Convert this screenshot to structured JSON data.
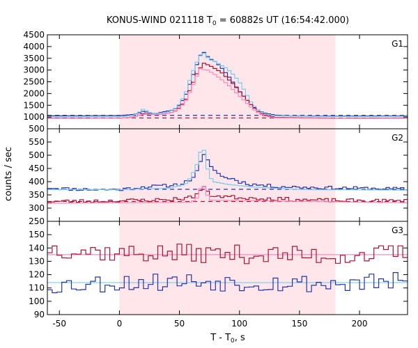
{
  "chart_data": {
    "type": "line",
    "title_prefix": "KONUS-WIND 021118 T",
    "title_sub": "0",
    "title_suffix": " = 60882s UT (16:54:42.000)",
    "xlabel_prefix": "T - T",
    "xlabel_sub": "0",
    "xlabel_suffix": ", s",
    "ylabel": "counts / sec",
    "xlim": [
      -60,
      240
    ],
    "x_ticks": [
      -50,
      0,
      50,
      100,
      150,
      200
    ],
    "highlight_interval": [
      0,
      180
    ],
    "colors": {
      "blue": "#2233aa",
      "red": "#aa1133",
      "light_blue": "#77ccee",
      "pink": "#ff88bb",
      "band": "#ffe6ea"
    },
    "panels": [
      {
        "name": "G1",
        "ylim": [
          500,
          4500
        ],
        "y_ticks": [
          500,
          1000,
          1500,
          2000,
          2500,
          3000,
          3500,
          4000,
          4500
        ],
        "background_levels": [
          {
            "color": "blue",
            "value": 1070
          },
          {
            "color": "red",
            "value": 960
          }
        ],
        "series": [
          {
            "color": "blue",
            "bin": 3,
            "points": [
              [
                -60,
                1050
              ],
              [
                0,
                1060
              ],
              [
                10,
                1100
              ],
              [
                15,
                1150
              ],
              [
                20,
                1250
              ],
              [
                25,
                1180
              ],
              [
                30,
                1150
              ],
              [
                35,
                1200
              ],
              [
                40,
                1250
              ],
              [
                45,
                1300
              ],
              [
                50,
                1500
              ],
              [
                55,
                1900
              ],
              [
                60,
                2600
              ],
              [
                65,
                3300
              ],
              [
                68,
                3700
              ],
              [
                70,
                3780
              ],
              [
                72,
                3650
              ],
              [
                75,
                3500
              ],
              [
                80,
                3350
              ],
              [
                85,
                3100
              ],
              [
                90,
                2800
              ],
              [
                95,
                2450
              ],
              [
                100,
                2100
              ],
              [
                105,
                1800
              ],
              [
                110,
                1500
              ],
              [
                115,
                1300
              ],
              [
                120,
                1180
              ],
              [
                130,
                1080
              ],
              [
                140,
                1050
              ],
              [
                180,
                1040
              ],
              [
                240,
                1050
              ]
            ]
          },
          {
            "color": "light_blue",
            "bin": 3,
            "points": [
              [
                -60,
                1000
              ],
              [
                0,
                1010
              ],
              [
                10,
                1060
              ],
              [
                15,
                1150
              ],
              [
                20,
                1350
              ],
              [
                25,
                1200
              ],
              [
                30,
                1150
              ],
              [
                40,
                1200
              ],
              [
                45,
                1300
              ],
              [
                50,
                1550
              ],
              [
                55,
                2000
              ],
              [
                60,
                2800
              ],
              [
                65,
                3400
              ],
              [
                68,
                3650
              ],
              [
                70,
                3750
              ],
              [
                72,
                3600
              ],
              [
                75,
                3450
              ],
              [
                80,
                3350
              ],
              [
                85,
                3200
              ],
              [
                90,
                3050
              ],
              [
                95,
                2800
              ],
              [
                100,
                2500
              ],
              [
                105,
                2050
              ],
              [
                110,
                1600
              ],
              [
                115,
                1300
              ],
              [
                120,
                1150
              ],
              [
                130,
                1050
              ],
              [
                180,
                1020
              ],
              [
                240,
                1030
              ]
            ]
          },
          {
            "color": "red",
            "bin": 3,
            "points": [
              [
                -60,
                950
              ],
              [
                0,
                950
              ],
              [
                10,
                990
              ],
              [
                15,
                1050
              ],
              [
                20,
                1150
              ],
              [
                30,
                1100
              ],
              [
                40,
                1150
              ],
              [
                45,
                1200
              ],
              [
                50,
                1400
              ],
              [
                55,
                1700
              ],
              [
                60,
                2300
              ],
              [
                65,
                2900
              ],
              [
                70,
                3300
              ],
              [
                72,
                3250
              ],
              [
                75,
                3200
              ],
              [
                80,
                3050
              ],
              [
                85,
                2900
              ],
              [
                90,
                2650
              ],
              [
                95,
                2400
              ],
              [
                100,
                2100
              ],
              [
                105,
                1800
              ],
              [
                110,
                1500
              ],
              [
                115,
                1250
              ],
              [
                120,
                1100
              ],
              [
                130,
                980
              ],
              [
                180,
                950
              ],
              [
                240,
                960
              ]
            ]
          },
          {
            "color": "pink",
            "bin": 3,
            "points": [
              [
                -60,
                940
              ],
              [
                0,
                945
              ],
              [
                10,
                980
              ],
              [
                15,
                1050
              ],
              [
                20,
                1120
              ],
              [
                30,
                1100
              ],
              [
                40,
                1150
              ],
              [
                45,
                1200
              ],
              [
                50,
                1350
              ],
              [
                55,
                1650
              ],
              [
                60,
                2200
              ],
              [
                65,
                2800
              ],
              [
                68,
                3100
              ],
              [
                70,
                3000
              ],
              [
                72,
                3050
              ],
              [
                75,
                2950
              ],
              [
                80,
                2800
              ],
              [
                85,
                2600
              ],
              [
                90,
                2400
              ],
              [
                95,
                2150
              ],
              [
                100,
                1900
              ],
              [
                105,
                1650
              ],
              [
                110,
                1400
              ],
              [
                115,
                1200
              ],
              [
                120,
                1050
              ],
              [
                130,
                960
              ],
              [
                180,
                940
              ],
              [
                240,
                945
              ]
            ]
          }
        ]
      },
      {
        "name": "G2",
        "ylim": [
          250,
          600
        ],
        "y_ticks": [
          250,
          300,
          350,
          400,
          450,
          500,
          550
        ],
        "background_levels": [
          {
            "color": "blue",
            "value": 371
          },
          {
            "color": "red",
            "value": 325
          }
        ],
        "series": [
          {
            "color": "blue",
            "bin": 3,
            "seed": 11,
            "amp": 6,
            "points": [
              [
                -60,
                378
              ],
              [
                -40,
                372
              ],
              [
                -20,
                370
              ],
              [
                0,
                370
              ],
              [
                20,
                380
              ],
              [
                40,
                385
              ],
              [
                50,
                390
              ],
              [
                55,
                398
              ],
              [
                60,
                410
              ],
              [
                65,
                440
              ],
              [
                68,
                480
              ],
              [
                70,
                500
              ],
              [
                72,
                490
              ],
              [
                75,
                470
              ],
              [
                80,
                440
              ],
              [
                85,
                420
              ],
              [
                90,
                415
              ],
              [
                95,
                410
              ],
              [
                100,
                400
              ],
              [
                110,
                390
              ],
              [
                130,
                382
              ],
              [
                160,
                378
              ],
              [
                200,
                375
              ],
              [
                240,
                372
              ]
            ]
          },
          {
            "color": "light_blue",
            "bin": 3,
            "points": [
              [
                -60,
                370
              ],
              [
                0,
                370
              ],
              [
                40,
                375
              ],
              [
                55,
                390
              ],
              [
                60,
                420
              ],
              [
                65,
                470
              ],
              [
                68,
                520
              ],
              [
                70,
                525
              ],
              [
                72,
                500
              ],
              [
                74,
                430
              ],
              [
                78,
                400
              ],
              [
                90,
                390
              ],
              [
                110,
                380
              ],
              [
                150,
                370
              ],
              [
                240,
                368
              ]
            ]
          },
          {
            "color": "red",
            "bin": 3,
            "seed": 23,
            "amp": 7,
            "points": [
              [
                -60,
                325
              ],
              [
                0,
                328
              ],
              [
                40,
                332
              ],
              [
                60,
                340
              ],
              [
                65,
                355
              ],
              [
                68,
                370
              ],
              [
                70,
                385
              ],
              [
                72,
                365
              ],
              [
                75,
                350
              ],
              [
                85,
                345
              ],
              [
                100,
                340
              ],
              [
                130,
                335
              ],
              [
                160,
                330
              ],
              [
                200,
                328
              ],
              [
                240,
                327
              ]
            ]
          },
          {
            "color": "pink",
            "bin": 3,
            "points": [
              [
                -60,
                318
              ],
              [
                60,
                322
              ],
              [
                65,
                340
              ],
              [
                68,
                380
              ],
              [
                70,
                390
              ],
              [
                72,
                360
              ],
              [
                76,
                330
              ],
              [
                240,
                320
              ]
            ]
          }
        ]
      },
      {
        "name": "G3",
        "ylim": [
          90,
          160
        ],
        "y_ticks": [
          90,
          100,
          110,
          120,
          130,
          140,
          150
        ],
        "background_levels": [
          {
            "color": "pink",
            "value": 135
          },
          {
            "color": "light_blue",
            "value": 114
          }
        ],
        "series": [
          {
            "color": "red",
            "bin": 4,
            "seed": 37,
            "amp": 7,
            "points": [
              [
                -60,
                140
              ],
              [
                0,
                136
              ],
              [
                60,
                136
              ],
              [
                120,
                135
              ],
              [
                180,
                134
              ],
              [
                240,
                136
              ]
            ]
          },
          {
            "color": "blue",
            "bin": 4,
            "seed": 53,
            "amp": 7,
            "points": [
              [
                -60,
                112
              ],
              [
                0,
                114
              ],
              [
                60,
                115
              ],
              [
                120,
                114
              ],
              [
                180,
                113
              ],
              [
                240,
                115
              ]
            ]
          }
        ]
      }
    ]
  }
}
